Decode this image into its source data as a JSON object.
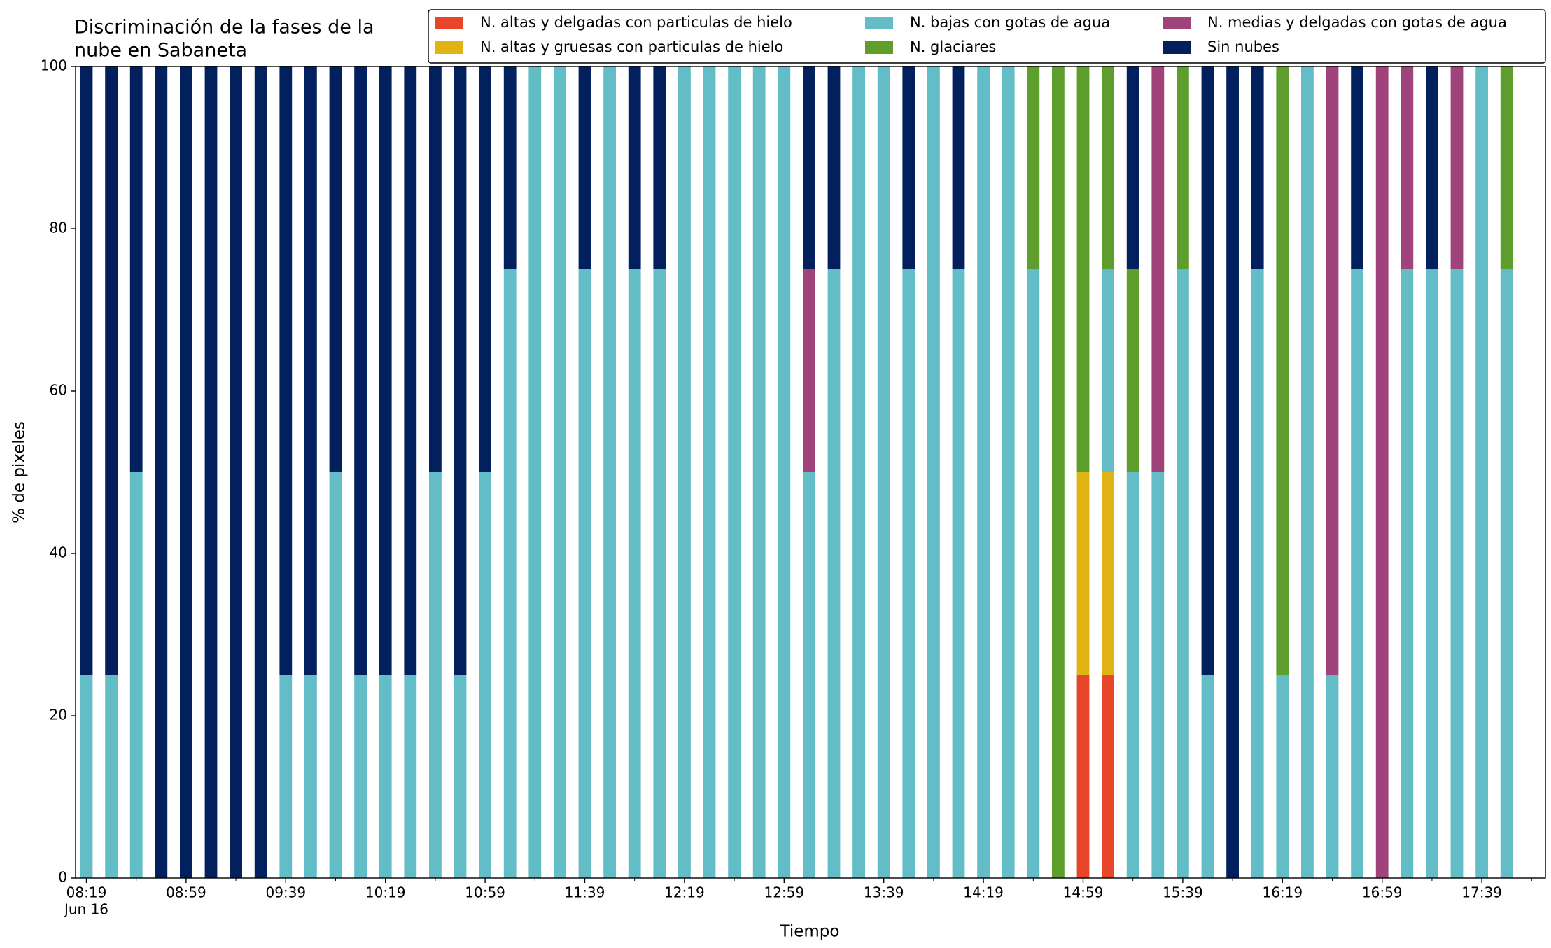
{
  "chart_data": {
    "type": "stacked_bar",
    "title": [
      "Discriminación de la fases de la",
      "nube en Sabaneta"
    ],
    "xlabel": "Tiempo",
    "ylabel": "% de pixeles",
    "date_label": "Jun 16",
    "categories": [
      "08:19",
      null,
      null,
      null,
      "08:59",
      null,
      null,
      null,
      "09:39",
      null,
      null,
      null,
      "10:19",
      null,
      null,
      null,
      "10:59",
      null,
      null,
      null,
      "11:39",
      null,
      null,
      null,
      "12:19",
      null,
      null,
      null,
      "12:59",
      null,
      null,
      null,
      "13:39",
      null,
      null,
      null,
      "14:19",
      null,
      null,
      null,
      "14:59",
      null,
      null,
      null,
      "15:39",
      null,
      null,
      null,
      "16:19",
      null,
      null,
      null,
      "16:59",
      null,
      null,
      null,
      "17:39",
      null
    ],
    "ylim": [
      0,
      100
    ],
    "yticks": [
      0,
      20,
      40,
      60,
      80,
      100
    ],
    "legend": "top-right",
    "series": [
      {
        "name": "N. altas y delgadas con particulas de hielo",
        "color": "#e8462a",
        "values": [
          0,
          0,
          0,
          0,
          0,
          0,
          0,
          0,
          0,
          0,
          0,
          0,
          0,
          0,
          0,
          0,
          0,
          0,
          0,
          0,
          0,
          0,
          0,
          0,
          0,
          0,
          0,
          0,
          0,
          0,
          0,
          0,
          0,
          0,
          0,
          0,
          0,
          0,
          0,
          0,
          25,
          25,
          0,
          0,
          0,
          0,
          0,
          0,
          0,
          0,
          0,
          0,
          0,
          0,
          0,
          0,
          0,
          0
        ]
      },
      {
        "name": "N. altas y gruesas con particulas de hielo",
        "color": "#e1b416",
        "values": [
          0,
          0,
          0,
          0,
          0,
          0,
          0,
          0,
          0,
          0,
          0,
          0,
          0,
          0,
          0,
          0,
          0,
          0,
          0,
          0,
          0,
          0,
          0,
          0,
          0,
          0,
          0,
          0,
          0,
          0,
          0,
          0,
          0,
          0,
          0,
          0,
          0,
          0,
          0,
          0,
          25,
          25,
          0,
          0,
          0,
          0,
          0,
          0,
          0,
          0,
          0,
          0,
          0,
          0,
          0,
          0,
          0,
          0
        ]
      },
      {
        "name": "N. bajas con gotas de agua",
        "color": "#63bdc7",
        "values": [
          25,
          25,
          50,
          0,
          0,
          0,
          0,
          0,
          25,
          25,
          50,
          25,
          25,
          25,
          50,
          25,
          50,
          75,
          100,
          100,
          75,
          100,
          75,
          75,
          100,
          100,
          100,
          100,
          100,
          50,
          75,
          100,
          100,
          75,
          100,
          75,
          100,
          100,
          75,
          0,
          0,
          25,
          50,
          50,
          75,
          25,
          0,
          75,
          25,
          100,
          25,
          75,
          0,
          75,
          75,
          75,
          100,
          75
        ]
      },
      {
        "name": "N. glaciares",
        "color": "#5e9e2c",
        "values": [
          0,
          0,
          0,
          0,
          0,
          0,
          0,
          0,
          0,
          0,
          0,
          0,
          0,
          0,
          0,
          0,
          0,
          0,
          0,
          0,
          0,
          0,
          0,
          0,
          0,
          0,
          0,
          0,
          0,
          0,
          0,
          0,
          0,
          0,
          0,
          0,
          0,
          0,
          25,
          100,
          50,
          25,
          25,
          0,
          25,
          0,
          0,
          0,
          75,
          0,
          0,
          0,
          0,
          0,
          0,
          0,
          0,
          25
        ]
      },
      {
        "name": "N. medias y delgadas con gotas de agua",
        "color": "#a0437a",
        "values": [
          0,
          0,
          0,
          0,
          0,
          0,
          0,
          0,
          0,
          0,
          0,
          0,
          0,
          0,
          0,
          0,
          0,
          0,
          0,
          0,
          0,
          0,
          0,
          0,
          0,
          0,
          0,
          0,
          0,
          25,
          0,
          0,
          0,
          0,
          0,
          0,
          0,
          0,
          0,
          0,
          0,
          0,
          0,
          50,
          0,
          0,
          0,
          0,
          0,
          0,
          75,
          0,
          100,
          25,
          0,
          25,
          0,
          0
        ]
      },
      {
        "name": "Sin nubes",
        "color": "#03205e",
        "values": [
          75,
          75,
          50,
          100,
          100,
          100,
          100,
          100,
          75,
          75,
          50,
          75,
          75,
          75,
          50,
          75,
          50,
          25,
          0,
          0,
          25,
          0,
          25,
          25,
          0,
          0,
          0,
          0,
          0,
          25,
          25,
          0,
          0,
          25,
          0,
          25,
          0,
          0,
          0,
          0,
          0,
          0,
          25,
          0,
          0,
          75,
          100,
          25,
          0,
          0,
          0,
          25,
          0,
          0,
          25,
          0,
          0,
          0
        ]
      }
    ]
  }
}
